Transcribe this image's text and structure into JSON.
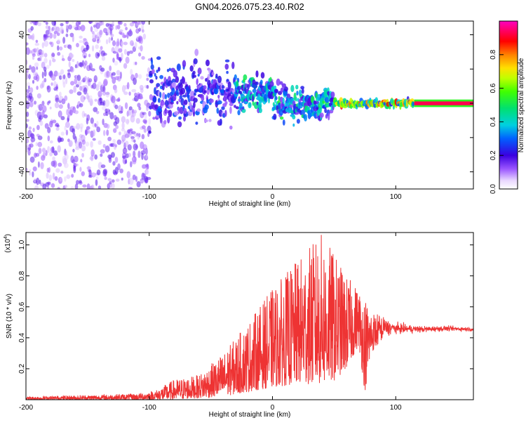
{
  "title": "GN04.2026.075.23.40.R02",
  "colors": {
    "snr_line": "#ee3333",
    "spectrogram_low": "#c8a0ff",
    "spectrogram_mid": "#5a00e6",
    "spectrogram_high": "#ff0033"
  },
  "chart_data": [
    {
      "type": "heatmap",
      "name": "spectrogram",
      "xlabel": "Height of straight line (km)",
      "ylabel": "Frequency (Hz)",
      "xlim": [
        -200,
        163
      ],
      "ylim": [
        -50,
        48
      ],
      "xticks": [
        -200,
        -100,
        0,
        100
      ],
      "yticks": [
        -40,
        -20,
        0,
        20,
        40
      ],
      "xtick_labels": [
        "-200",
        "-100",
        "0",
        "100"
      ],
      "ytick_labels": [
        "-40",
        "-20",
        "0",
        "20",
        "40"
      ],
      "features": [
        {
          "x_range": [
            -200,
            -100
          ],
          "freq_spread_hz": 48,
          "intensity": 0.12,
          "description_level": "scattered"
        },
        {
          "x_range": [
            -100,
            -30
          ],
          "freq_spread_hz": 35,
          "intensity": 0.2
        },
        {
          "x_range": [
            -30,
            50
          ],
          "freq_spread_hz": 18,
          "intensity": 0.3
        },
        {
          "x_range": [
            50,
            115
          ],
          "freq_spread_hz": 4,
          "intensity": 0.55
        },
        {
          "x_range": [
            115,
            163
          ],
          "freq_spread_hz": 1.5,
          "intensity": 0.95
        }
      ],
      "colorbar": {
        "label": "Normalized spectral amplitude",
        "range": [
          0,
          1
        ],
        "ticks": [
          0.0,
          0.2,
          0.4,
          0.6,
          0.8
        ],
        "tick_labels": [
          "0.0",
          "0.2",
          "0.4",
          "0.6",
          "0.8"
        ]
      }
    },
    {
      "type": "line",
      "name": "snr",
      "xlabel": "Height of straight line (km)",
      "ylabel": "SNR (10 * v/v)",
      "y_multiplier_label": "(x10",
      "y_multiplier_exp": "4",
      "y_multiplier_close": ")",
      "xlim": [
        -200,
        163
      ],
      "ylim": [
        0,
        1.08
      ],
      "xticks": [
        -200,
        -100,
        0,
        100
      ],
      "yticks": [
        0.2,
        0.4,
        0.6,
        0.8,
        1.0
      ],
      "xtick_labels": [
        "-200",
        "-100",
        "0",
        "100"
      ],
      "ytick_labels": [
        "0.2",
        "0.4",
        "0.6",
        "0.8",
        "1.0"
      ],
      "envelope": {
        "x": [
          -200,
          -150,
          -110,
          -95,
          -80,
          -60,
          -40,
          -20,
          0,
          20,
          40,
          50,
          60,
          70,
          75,
          80,
          90,
          100,
          120,
          140,
          163
        ],
        "lower": [
          0.0,
          0.0,
          0.0,
          0.0,
          0.0,
          0.01,
          0.02,
          0.05,
          0.08,
          0.1,
          0.1,
          0.12,
          0.2,
          0.35,
          0.05,
          0.3,
          0.4,
          0.42,
          0.43,
          0.44,
          0.44
        ],
        "upper": [
          0.02,
          0.03,
          0.04,
          0.06,
          0.13,
          0.16,
          0.3,
          0.5,
          0.72,
          0.9,
          1.08,
          0.95,
          0.8,
          0.72,
          0.68,
          0.58,
          0.54,
          0.5,
          0.48,
          0.48,
          0.47
        ]
      }
    }
  ]
}
